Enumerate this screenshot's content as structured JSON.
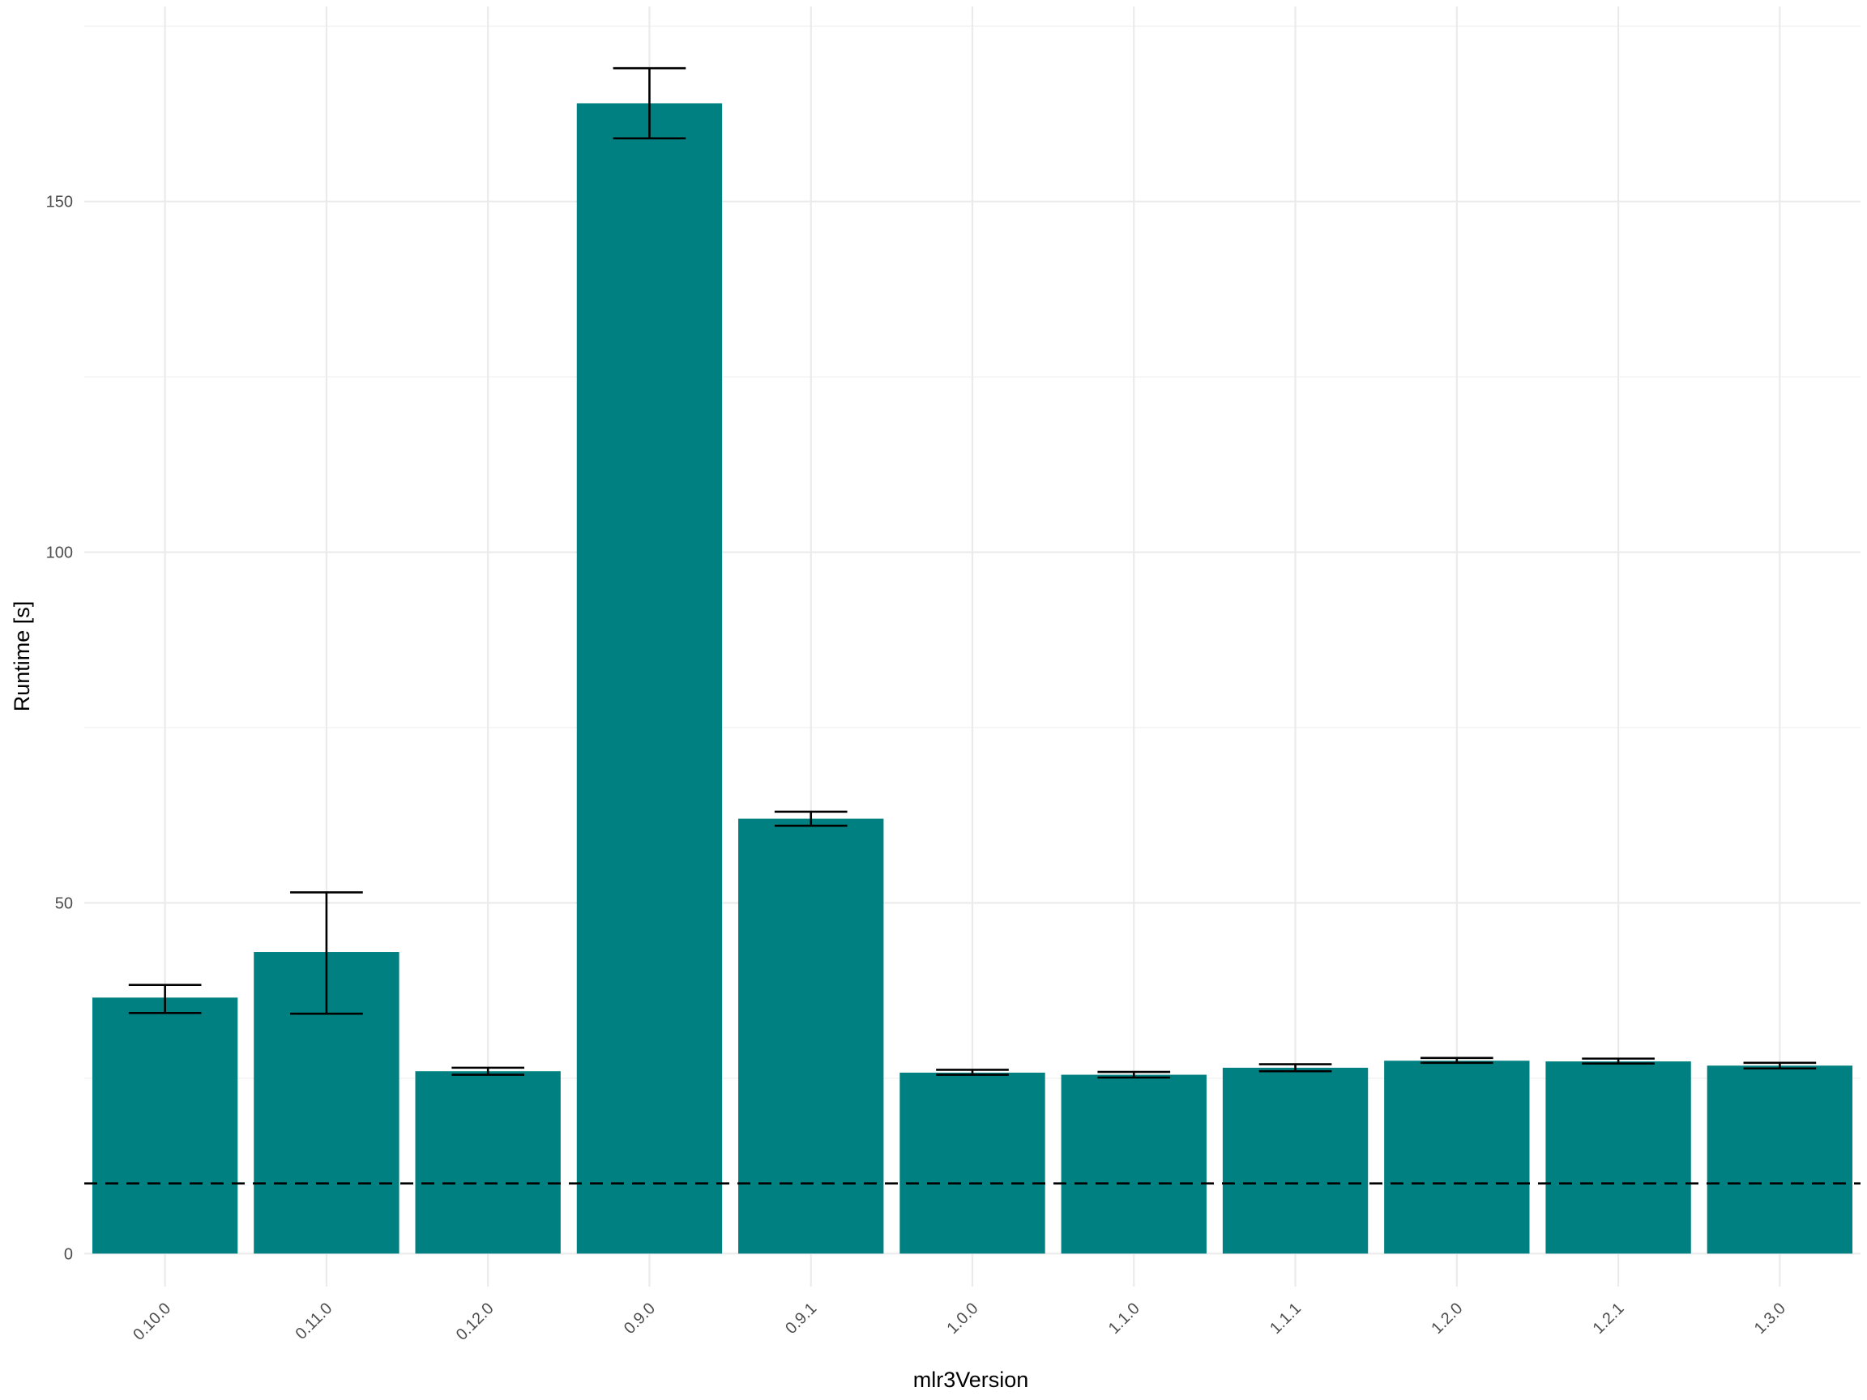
{
  "chart_data": {
    "type": "bar",
    "xlabel": "mlr3Version",
    "ylabel": "Runtime [s]",
    "categories": [
      "0.10.0",
      "0.11.0",
      "0.12.0",
      "0.9.0",
      "0.9.1",
      "1.0.0",
      "1.1.0",
      "1.1.1",
      "1.2.0",
      "1.2.1",
      "1.3.0"
    ],
    "values": [
      36.5,
      43.0,
      26.0,
      164.0,
      62.0,
      25.8,
      25.5,
      26.5,
      27.5,
      27.4,
      26.8
    ],
    "error_low": [
      34.3,
      34.2,
      25.5,
      159.0,
      61.0,
      25.5,
      25.1,
      26.0,
      27.2,
      27.1,
      26.4
    ],
    "error_high": [
      38.3,
      51.5,
      26.5,
      169.0,
      63.0,
      26.2,
      25.9,
      27.0,
      27.9,
      27.8,
      27.2
    ],
    "reference_line": 10,
    "ylim": [
      -4.7,
      177.8
    ],
    "yticks": [
      0,
      50,
      100,
      150
    ],
    "bar_color": "#008080",
    "grid": true,
    "legend": "none"
  }
}
